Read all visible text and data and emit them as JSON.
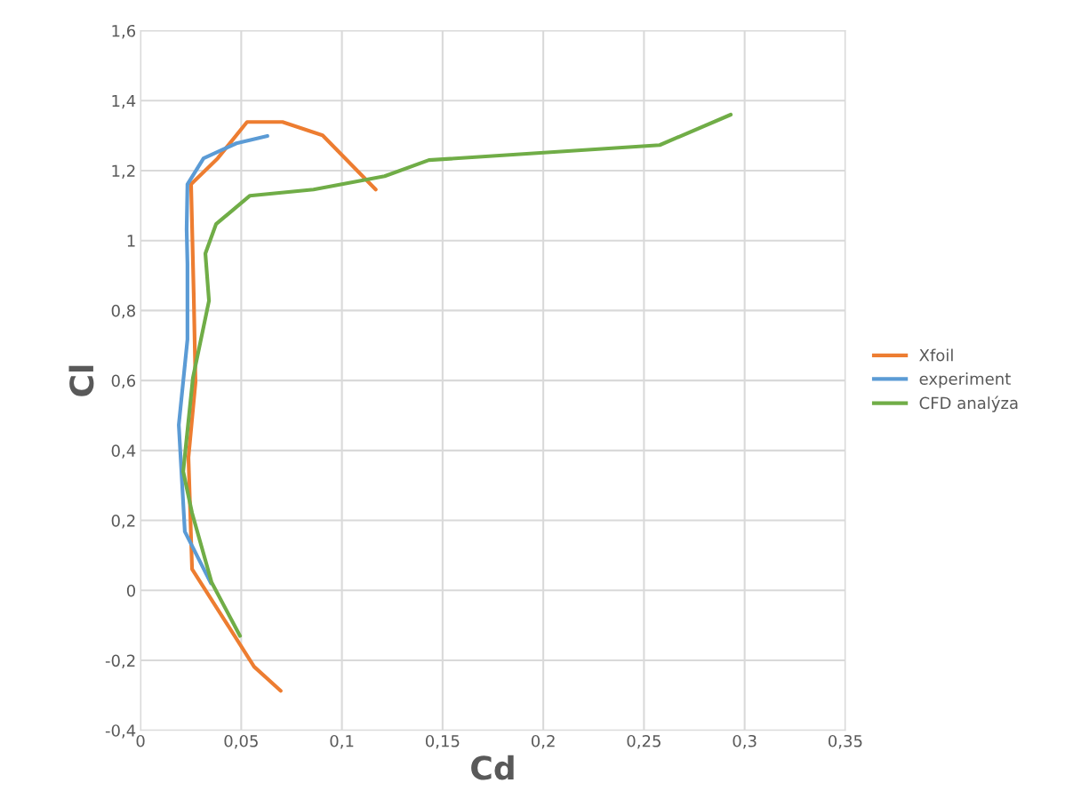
{
  "chart_data": {
    "type": "line",
    "xlabel": "Cd",
    "ylabel": "Cl",
    "xlim": [
      0,
      0.35
    ],
    "ylim": [
      -0.4,
      1.6
    ],
    "xticks": [
      {
        "value": 0,
        "label": "0"
      },
      {
        "value": 0.05,
        "label": "0,05"
      },
      {
        "value": 0.1,
        "label": "0,1"
      },
      {
        "value": 0.15,
        "label": "0,15"
      },
      {
        "value": 0.2,
        "label": "0,2"
      },
      {
        "value": 0.25,
        "label": "0,25"
      },
      {
        "value": 0.3,
        "label": "0,3"
      },
      {
        "value": 0.35,
        "label": "0,35"
      }
    ],
    "yticks": [
      {
        "value": -0.4,
        "label": "-0,4"
      },
      {
        "value": -0.2,
        "label": "-0,2"
      },
      {
        "value": 0,
        "label": "0"
      },
      {
        "value": 0.2,
        "label": "0,2"
      },
      {
        "value": 0.4,
        "label": "0,4"
      },
      {
        "value": 0.6,
        "label": "0,6"
      },
      {
        "value": 0.8,
        "label": "0,8"
      },
      {
        "value": 1,
        "label": "1"
      },
      {
        "value": 1.2,
        "label": "1,2"
      },
      {
        "value": 1.4,
        "label": "1,4"
      },
      {
        "value": 1.6,
        "label": "1,6"
      }
    ],
    "grid": true,
    "legend": "right",
    "marker": "none",
    "line_style": "solid",
    "series": [
      {
        "name": "Xfoil",
        "color": "#ed7d31",
        "x": [
          0.0696,
          0.0564,
          0.0256,
          0.0238,
          0.0273,
          0.0264,
          0.0251,
          0.0383,
          0.0529,
          0.0705,
          0.0904,
          0.1168
        ],
        "values": [
          -0.287,
          -0.218,
          0.061,
          0.38,
          0.595,
          0.85,
          1.161,
          1.235,
          1.339,
          1.339,
          1.301,
          1.146
        ]
      },
      {
        "name": "experiment",
        "color": "#5b9bd5",
        "x": [
          0.035,
          0.022,
          0.019,
          0.0233,
          0.0233,
          0.0229,
          0.0233,
          0.0313,
          0.0476,
          0.063
        ],
        "values": [
          0.02,
          0.168,
          0.473,
          0.717,
          0.933,
          1.032,
          1.161,
          1.235,
          1.278,
          1.299
        ]
      },
      {
        "name": "CFD analýza",
        "color": "#70ad47",
        "x": [
          0.0494,
          0.0353,
          0.0256,
          0.0212,
          0.026,
          0.034,
          0.0322,
          0.0375,
          0.0542,
          0.0859,
          0.1212,
          0.1432,
          0.2578,
          0.2931
        ],
        "values": [
          -0.13,
          0.023,
          0.221,
          0.34,
          0.607,
          0.828,
          0.963,
          1.047,
          1.128,
          1.146,
          1.184,
          1.23,
          1.273,
          1.36
        ]
      }
    ]
  }
}
